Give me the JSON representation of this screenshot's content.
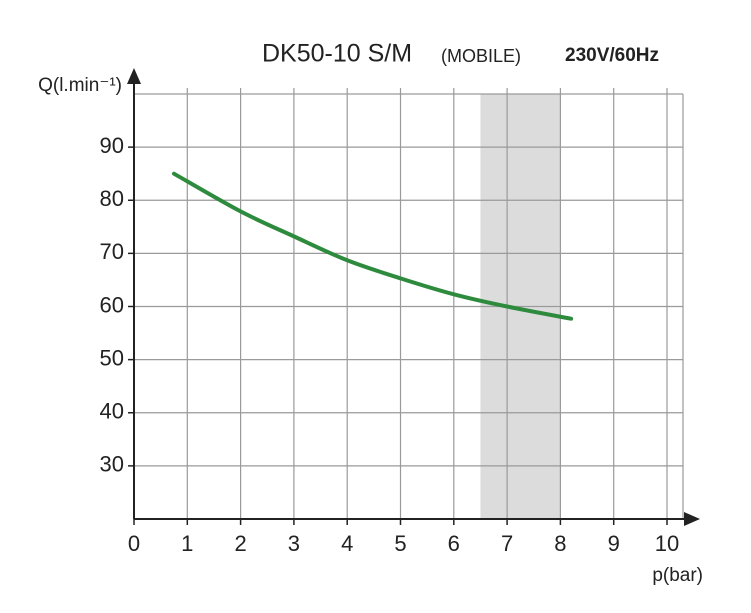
{
  "chart_data": {
    "type": "line",
    "title": "DK50-10 S/M",
    "title_note": "(MOBILE)",
    "subtitle": "230V/60Hz",
    "y_label": "Q(l.min⁻¹)",
    "x_label": "p(bar)",
    "x": [
      0.75,
      2,
      3,
      4,
      5,
      6,
      7,
      8.2
    ],
    "values": [
      85,
      77.9,
      73.2,
      68.7,
      65.3,
      62.3,
      60,
      57.7
    ],
    "color": "#2e8b3e",
    "highlight_range": [
      6.5,
      8
    ],
    "highlight_color": "#dcdcdc",
    "xlim": [
      0,
      10.3
    ],
    "xticks": [
      0,
      1,
      2,
      3,
      4,
      5,
      6,
      7,
      8,
      9,
      10
    ],
    "ylim": [
      20,
      100
    ],
    "yticks": [
      30,
      40,
      50,
      60,
      70,
      80,
      90
    ],
    "grid": true
  }
}
